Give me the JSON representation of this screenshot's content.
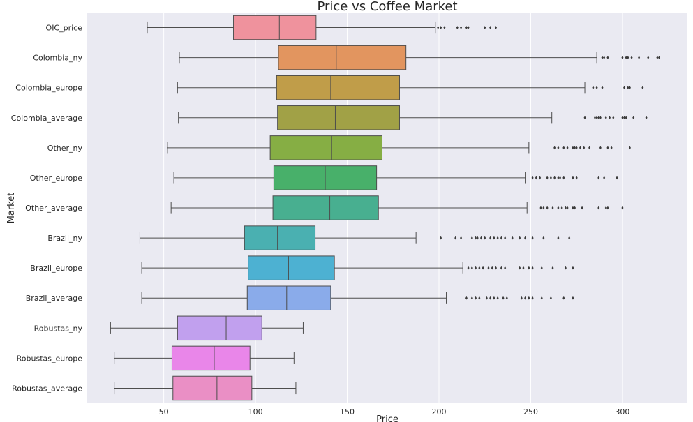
{
  "chart_data": {
    "type": "box",
    "title": "Price vs Coffee Market",
    "xlabel": "Price",
    "ylabel": "Market",
    "xlim": [
      8.3,
      335.4
    ],
    "xticks": [
      50,
      100,
      150,
      200,
      250,
      300
    ],
    "grid": true,
    "background": "#eaeaf2",
    "gridColor": "#ffffff",
    "outlierColor": "#3a3a3a",
    "series": [
      {
        "name": "OIC_price",
        "color": "#ef929d",
        "whisker_low": 41,
        "q1": 88,
        "median": 113,
        "q3": 133,
        "whisker_high": 198,
        "outliers": [
          199.5,
          201,
          203,
          210,
          212,
          215,
          216,
          225,
          228,
          231
        ]
      },
      {
        "name": "Colombia_ny",
        "color": "#e2955f",
        "whisker_low": 58.5,
        "q1": 112.5,
        "median": 144,
        "q3": 182,
        "whisker_high": 286,
        "outliers": [
          289,
          290,
          292,
          300,
          302,
          303,
          305,
          309,
          314,
          319,
          320
        ]
      },
      {
        "name": "Colombia_europe",
        "color": "#c09d49",
        "whisker_low": 57.5,
        "q1": 111.5,
        "median": 141,
        "q3": 178.5,
        "whisker_high": 279.5,
        "outliers": [
          284,
          286,
          289,
          301,
          303,
          304,
          311
        ]
      },
      {
        "name": "Colombia_average",
        "color": "#a1a146",
        "whisker_low": 58,
        "q1": 112,
        "median": 143.5,
        "q3": 178.5,
        "whisker_high": 261.5,
        "outliers": [
          279.5,
          285,
          286,
          287,
          288,
          291,
          293,
          295,
          300,
          301,
          302,
          306,
          313
        ]
      },
      {
        "name": "Other_ny",
        "color": "#86ae44",
        "whisker_low": 52,
        "q1": 108,
        "median": 141.5,
        "q3": 169,
        "whisker_high": 249,
        "outliers": [
          263,
          265,
          268,
          270,
          273,
          274,
          275,
          277,
          279,
          282,
          288,
          292,
          294,
          304
        ]
      },
      {
        "name": "Other_europe",
        "color": "#48b06a",
        "whisker_low": 55.5,
        "q1": 110,
        "median": 138,
        "q3": 166,
        "whisker_high": 247,
        "outliers": [
          251,
          253,
          255,
          259,
          261,
          263,
          265,
          266,
          268,
          273,
          275,
          287,
          290,
          297
        ]
      },
      {
        "name": "Other_average",
        "color": "#48af90",
        "whisker_low": 54,
        "q1": 109.5,
        "median": 140.5,
        "q3": 167,
        "whisker_high": 248,
        "outliers": [
          255.5,
          257,
          259,
          262,
          265,
          267,
          269,
          270,
          273,
          274,
          278,
          287,
          291,
          292,
          300
        ]
      },
      {
        "name": "Brazil_ny",
        "color": "#4ab0b1",
        "whisker_low": 37,
        "q1": 94,
        "median": 112,
        "q3": 132.5,
        "whisker_high": 187.5,
        "outliers": [
          201,
          209,
          212,
          218,
          220,
          221,
          223,
          225,
          228,
          230,
          232,
          234,
          236,
          240,
          244,
          247,
          251,
          257,
          265,
          271
        ]
      },
      {
        "name": "Brazil_europe",
        "color": "#4db1d2",
        "whisker_low": 38,
        "q1": 96,
        "median": 118,
        "q3": 143,
        "whisker_high": 213,
        "outliers": [
          216,
          218,
          220,
          222,
          224,
          227,
          229,
          231,
          234,
          236,
          244,
          246,
          249,
          251,
          256,
          262,
          269,
          273
        ]
      },
      {
        "name": "Brazil_average",
        "color": "#8aabea",
        "whisker_low": 38,
        "q1": 95.5,
        "median": 117,
        "q3": 141,
        "whisker_high": 204,
        "outliers": [
          215,
          218,
          220,
          222,
          226,
          228,
          230,
          232,
          235,
          237,
          245,
          247,
          249,
          251,
          256,
          261,
          268,
          273
        ]
      },
      {
        "name": "Robustas_ny",
        "color": "#c1a0ee",
        "whisker_low": 21,
        "q1": 57.5,
        "median": 84,
        "q3": 103.5,
        "whisker_high": 126,
        "outliers": []
      },
      {
        "name": "Robustas_europe",
        "color": "#e986e9",
        "whisker_low": 23,
        "q1": 54.5,
        "median": 77.5,
        "q3": 97,
        "whisker_high": 121,
        "outliers": []
      },
      {
        "name": "Robustas_average",
        "color": "#ea8fc5",
        "whisker_low": 23,
        "q1": 55,
        "median": 79,
        "q3": 98,
        "whisker_high": 122,
        "outliers": []
      }
    ]
  }
}
